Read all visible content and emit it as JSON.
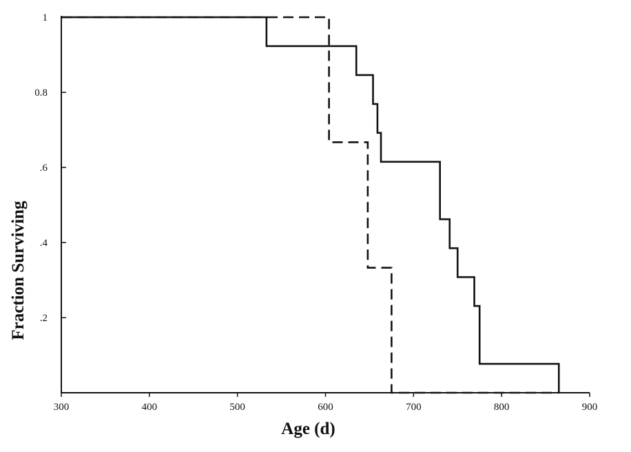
{
  "chart_data": {
    "type": "line",
    "step": true,
    "xlabel": "Age (d)",
    "ylabel": "Fraction Surviving",
    "xlim": [
      300,
      900
    ],
    "ylim": [
      0,
      1
    ],
    "x_ticks": [
      300,
      400,
      500,
      600,
      700,
      800,
      900
    ],
    "x_tick_labels": [
      "300",
      "400",
      "500",
      "600",
      "700",
      "800",
      "900"
    ],
    "y_ticks": [
      0.2,
      0.4,
      0.6,
      0.8,
      1
    ],
    "y_tick_labels": [
      ".2",
      ".4",
      ".6",
      "0.8",
      "1"
    ],
    "grid": false,
    "series": [
      {
        "style": "solid",
        "color": "#111111",
        "x": [
          300,
          533,
          635,
          654,
          659,
          663,
          730,
          741,
          750,
          769,
          775,
          865
        ],
        "y": [
          1,
          0.923,
          0.846,
          0.769,
          0.692,
          0.615,
          0.462,
          0.385,
          0.308,
          0.231,
          0.077,
          0
        ]
      },
      {
        "style": "dashed",
        "color": "#111111",
        "x": [
          300,
          604,
          648,
          675,
          865
        ],
        "y": [
          1,
          0.667,
          0.333,
          0,
          0
        ]
      }
    ]
  }
}
